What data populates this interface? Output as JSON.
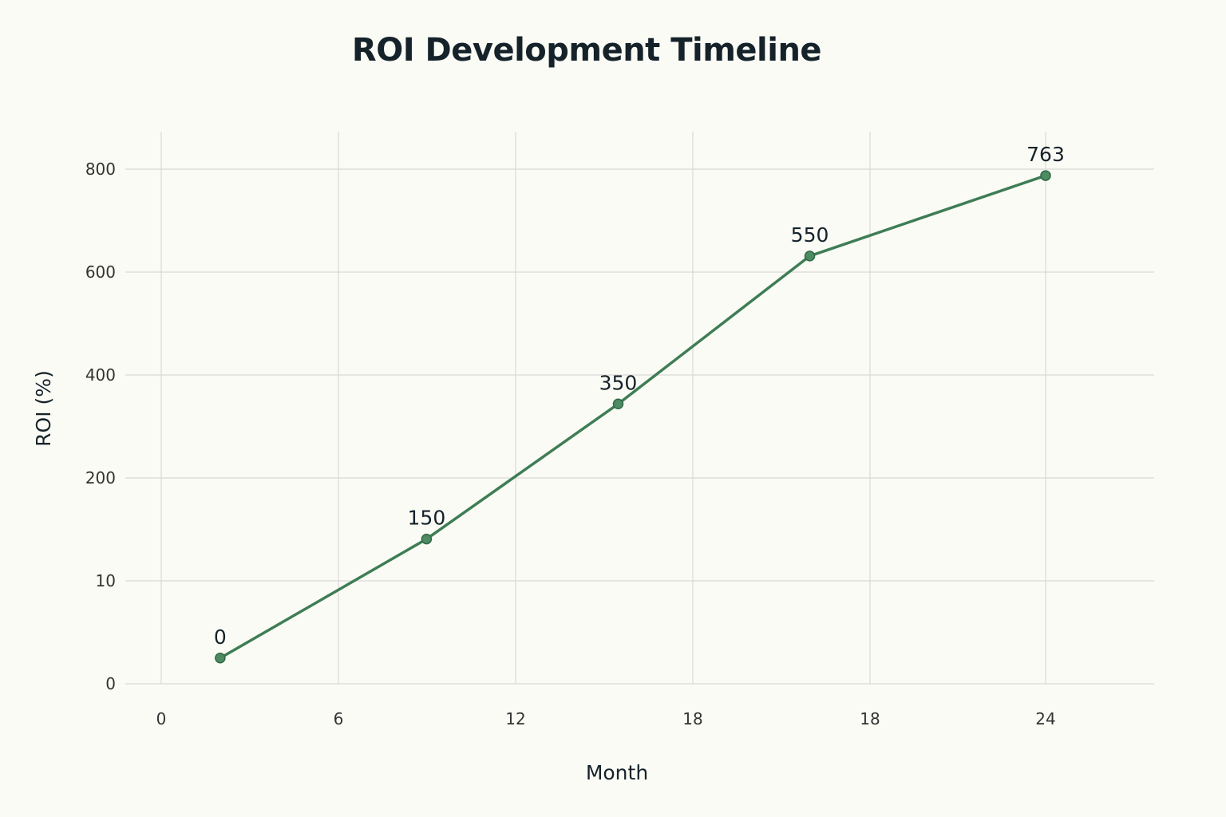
{
  "chart_data": {
    "type": "line",
    "title": "ROI Development Timeline",
    "xlabel": "Month",
    "ylabel": "ROI (%)",
    "x_tick_labels": [
      "0",
      "6",
      "12",
      "18",
      "18",
      "24"
    ],
    "y_tick_labels": [
      "0",
      "10",
      "200",
      "400",
      "600",
      "800"
    ],
    "series": [
      {
        "points": [
          {
            "x": 2,
            "y": 40,
            "label": "0"
          },
          {
            "x": 9,
            "y": 225,
            "label": "150"
          },
          {
            "x": 15.5,
            "y": 435,
            "label": "350"
          },
          {
            "x": 22,
            "y": 665,
            "label": "550"
          },
          {
            "x": 30,
            "y": 790,
            "label": "763"
          }
        ]
      }
    ],
    "grid": true,
    "line_color": "#3e7d55",
    "marker_color": "#4e8a62"
  }
}
